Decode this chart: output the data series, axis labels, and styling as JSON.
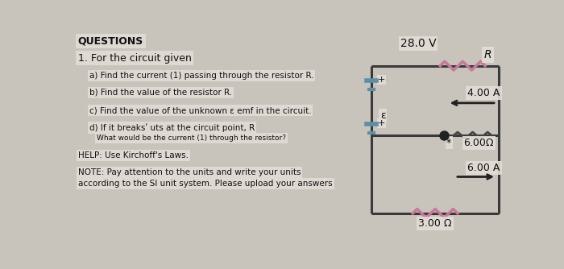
{
  "bg_color": "#c8c4bc",
  "title": "QUESTIONS",
  "q1": "1. For the circuit given",
  "qa": "a) Find the current (1) passing through the resistor R.",
  "qb": "b) Find the value of the resistor R.",
  "qc": "c) Find the value of the unknown ε emf in the circuit.",
  "qd": "d) If it breaksʹ uts at the circuit point, R",
  "qd_sub": "What would be the current (1) through the resistor?",
  "help_text": "HELP: Use Kirchoff's Laws.",
  "note1": "NOTE: Pay attention to the units and write your units",
  "note2": "according to the SI unit system. Please upload your answers",
  "wire_color": "#3a3a3a",
  "battery_color": "#5b8fa8",
  "resistor_R_color": "#c87898",
  "resistor_3_color": "#c87898",
  "resistor_6_color": "#444444",
  "voltage_28": "28.0 V",
  "label_R": "R",
  "label_4A": "4.00 A",
  "label_6ohm": "6.00Ω",
  "label_6A": "6.00 A",
  "label_3ohm": "3.00 Ω",
  "label_eps": "ε",
  "label_plus1": "+",
  "label_plus2": "+",
  "label_star": "*",
  "node_color": "#222222",
  "arrow_color": "#222222",
  "box_color": "#e2ddd6"
}
